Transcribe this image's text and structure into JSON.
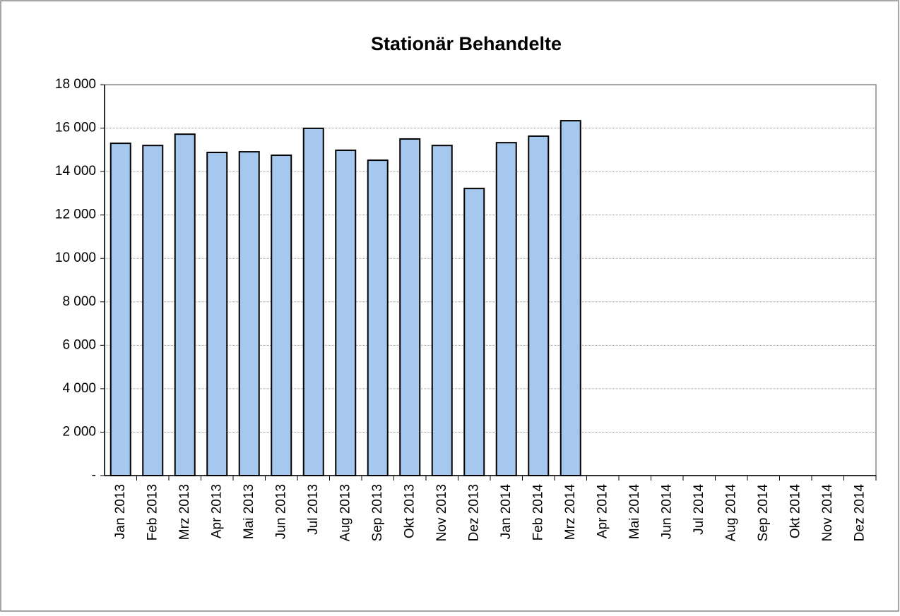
{
  "chart_data": {
    "type": "bar",
    "title": "Stationär Behandelte",
    "categories": [
      "Jan 2013",
      "Feb 2013",
      "Mrz 2013",
      "Apr 2013",
      "Mai 2013",
      "Jun 2013",
      "Jul 2013",
      "Aug 2013",
      "Sep 2013",
      "Okt 2013",
      "Nov 2013",
      "Dez 2013",
      "Jan 2014",
      "Feb 2014",
      "Mrz 2014",
      "Apr 2014",
      "Mai 2014",
      "Jun 2014",
      "Jul 2014",
      "Aug 2014",
      "Sep 2014",
      "Okt 2014",
      "Nov 2014",
      "Dez 2014"
    ],
    "values": [
      15300,
      15200,
      15720,
      14880,
      14910,
      14750,
      15990,
      14980,
      14520,
      15500,
      15200,
      13220,
      15330,
      15630,
      16340,
      null,
      null,
      null,
      null,
      null,
      null,
      null,
      null,
      null
    ],
    "color": "#a6c8ee",
    "ylim": [
      0,
      18000
    ],
    "yticks": [
      {
        "value": 0,
        "label": "-"
      },
      {
        "value": 2000,
        "label": "2 000"
      },
      {
        "value": 4000,
        "label": "4 000"
      },
      {
        "value": 6000,
        "label": "6 000"
      },
      {
        "value": 8000,
        "label": "8 000"
      },
      {
        "value": 10000,
        "label": "10 000"
      },
      {
        "value": 12000,
        "label": "12 000"
      },
      {
        "value": 14000,
        "label": "14 000"
      },
      {
        "value": 16000,
        "label": "16 000"
      },
      {
        "value": 18000,
        "label": "18 000"
      }
    ],
    "grid": true
  }
}
